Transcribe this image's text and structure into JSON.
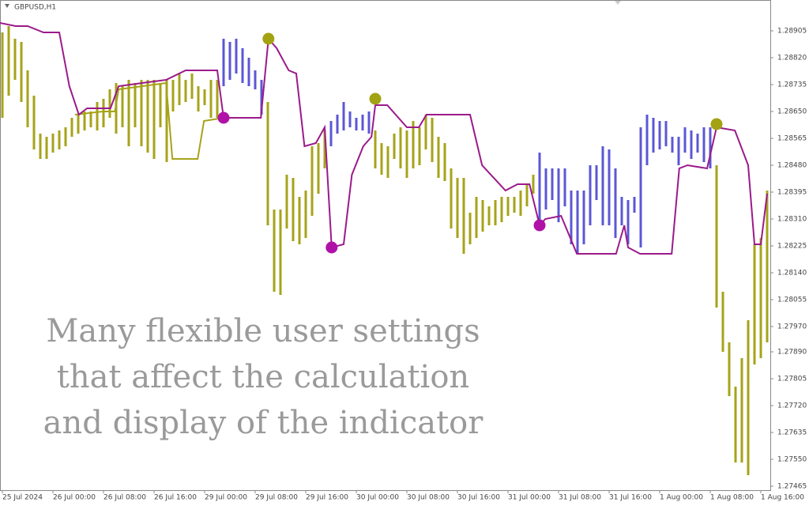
{
  "chart_data": {
    "type": "bars",
    "symbol": "GBPUSD,H1",
    "annotation": [
      "Many flexible user settings",
      "that affect the calculation",
      "and display of the indicator"
    ],
    "xlim": [
      -0.375,
      121.5
    ],
    "ylim": [
      1.274525,
      1.290025
    ],
    "xticks": [
      {
        "value": 0,
        "label": "25 Jul 2024"
      },
      {
        "value": 8,
        "label": "26 Jul 00:00"
      },
      {
        "value": 16,
        "label": "26 Jul 08:00"
      },
      {
        "value": 24,
        "label": "26 Jul 16:00"
      },
      {
        "value": 32,
        "label": "29 Jul 00:00"
      },
      {
        "value": 40,
        "label": "29 Jul 08:00"
      },
      {
        "value": 48,
        "label": "29 Jul 16:00"
      },
      {
        "value": 56,
        "label": "30 Jul 00:00"
      },
      {
        "value": 64,
        "label": "30 Jul 08:00"
      },
      {
        "value": 72,
        "label": "30 Jul 16:00"
      },
      {
        "value": 80,
        "label": "31 Jul 00:00"
      },
      {
        "value": 88,
        "label": "31 Jul 08:00"
      },
      {
        "value": 96,
        "label": "31 Jul 16:00"
      },
      {
        "value": 104,
        "label": "1 Aug 00:00"
      },
      {
        "value": 112,
        "label": "1 Aug 08:00"
      },
      {
        "value": 120,
        "label": "1 Aug 16:00"
      }
    ],
    "yticks": [
      1.28905,
      {
        "value": 1.2882,
        "label": "1.28820"
      },
      1.28735,
      {
        "value": 1.2865,
        "label": "1.28650"
      },
      1.28565,
      {
        "value": 1.2848,
        "label": "1.28480"
      },
      1.28395,
      {
        "value": 1.2831,
        "label": "1.28310"
      },
      1.28225,
      {
        "value": 1.2814,
        "label": "1.28140"
      },
      1.28055,
      {
        "value": 1.2797,
        "label": "1.27970"
      },
      {
        "value": 1.2789,
        "label": "1.27890"
      },
      1.27805,
      {
        "value": 1.2772,
        "label": "1.27720"
      },
      1.27635,
      {
        "value": 1.2755,
        "label": "1.27550"
      },
      1.27465
    ],
    "series": [
      {
        "color": "#a6a31a",
        "x": [
          0,
          1,
          2,
          3,
          4,
          5,
          6,
          7,
          8,
          9,
          10,
          11,
          12,
          13,
          14,
          15,
          16,
          17,
          18,
          19,
          20,
          21,
          22,
          23,
          24,
          25,
          26,
          27,
          28,
          29,
          30,
          31,
          32,
          33,
          34,
          42,
          43,
          44,
          45,
          46,
          47,
          48,
          49,
          50,
          51,
          59,
          60,
          61,
          62,
          63,
          64,
          65,
          66,
          67,
          68,
          69,
          70,
          71,
          72,
          73,
          74,
          75,
          76,
          77,
          78,
          79,
          80,
          81,
          82,
          83,
          84,
          113,
          114,
          115,
          116,
          117,
          118,
          119,
          120,
          121
        ],
        "high": [
          1.289,
          1.2892,
          1.2888,
          1.2887,
          1.2878,
          1.287,
          1.2858,
          1.2857,
          1.2858,
          1.2859,
          1.286,
          1.2863,
          1.2864,
          1.2865,
          1.2865,
          1.2868,
          1.2869,
          1.2872,
          1.2874,
          1.2873,
          1.2875,
          1.2874,
          1.2875,
          1.2875,
          1.2875,
          1.2874,
          1.2875,
          1.2875,
          1.2877,
          1.2875,
          1.2877,
          1.2873,
          1.2872,
          1.2875,
          1.2875,
          1.2868,
          1.2834,
          1.2834,
          1.2845,
          1.2844,
          1.2838,
          1.284,
          1.2854,
          1.2855,
          1.2859,
          1.2859,
          1.2855,
          1.2854,
          1.2858,
          1.286,
          1.2859,
          1.2862,
          1.286,
          1.2864,
          1.2863,
          1.2857,
          1.2855,
          1.2847,
          1.2844,
          1.2844,
          1.2833,
          1.2838,
          1.2837,
          1.2835,
          1.2837,
          1.2838,
          1.2838,
          1.2838,
          1.284,
          1.2842,
          1.2845,
          1.2848,
          1.2808,
          1.2792,
          1.2778,
          1.2787,
          1.2799,
          1.2823,
          1.2825,
          1.284
        ],
        "low": [
          1.2863,
          1.287,
          1.2875,
          1.2868,
          1.286,
          1.2853,
          1.285,
          1.285,
          1.2852,
          1.2853,
          1.2854,
          1.2857,
          1.2858,
          1.2859,
          1.286,
          1.2859,
          1.286,
          1.2863,
          1.2858,
          1.286,
          1.2854,
          1.286,
          1.2854,
          1.2852,
          1.285,
          1.286,
          1.2849,
          1.2865,
          1.2867,
          1.2868,
          1.2869,
          1.2865,
          1.2867,
          1.2863,
          1.2863,
          1.2829,
          1.2808,
          1.2807,
          1.2828,
          1.2824,
          1.2823,
          1.2825,
          1.2832,
          1.2839,
          1.2847,
          1.2847,
          1.2845,
          1.2844,
          1.285,
          1.2847,
          1.2844,
          1.2847,
          1.2848,
          1.2853,
          1.2849,
          1.2844,
          1.2843,
          1.2828,
          1.2825,
          1.282,
          1.2823,
          1.2825,
          1.2827,
          1.2829,
          1.2829,
          1.283,
          1.2832,
          1.2833,
          1.2832,
          1.2835,
          1.2839,
          1.2803,
          1.2789,
          1.2775,
          1.2754,
          1.2754,
          1.275,
          1.2785,
          1.2787,
          1.2792
        ]
      },
      {
        "color": "#5b57d6",
        "x": [
          35,
          36,
          37,
          38,
          39,
          40,
          41,
          52,
          53,
          54,
          55,
          56,
          57,
          58,
          85,
          86,
          87,
          88,
          89,
          90,
          91,
          92,
          93,
          94,
          95,
          96,
          97,
          98,
          99,
          100,
          101,
          102,
          103,
          104,
          105,
          106,
          107,
          108,
          109,
          110,
          111,
          112
        ],
        "high": [
          1.2888,
          1.2887,
          1.2888,
          1.2885,
          1.2882,
          1.2878,
          1.2875,
          1.2862,
          1.2864,
          1.2868,
          1.2865,
          1.2863,
          1.2864,
          1.2865,
          1.2852,
          1.2847,
          1.2847,
          1.2847,
          1.2847,
          1.284,
          1.284,
          1.284,
          1.2848,
          1.2848,
          1.2854,
          1.2853,
          1.2847,
          1.2838,
          1.2837,
          1.2838,
          1.286,
          1.2864,
          1.2863,
          1.2862,
          1.2862,
          1.2857,
          1.2857,
          1.286,
          1.2859,
          1.2858,
          1.286,
          1.286
        ],
        "low": [
          1.2873,
          1.2875,
          1.2877,
          1.2874,
          1.2873,
          1.2872,
          1.2864,
          1.2854,
          1.2858,
          1.2859,
          1.286,
          1.2859,
          1.2859,
          1.2858,
          1.283,
          1.2834,
          1.2837,
          1.283,
          1.2835,
          1.2823,
          1.282,
          1.2823,
          1.2829,
          1.2837,
          1.2829,
          1.2829,
          1.2825,
          1.2829,
          1.2823,
          1.2833,
          1.2822,
          1.2848,
          1.2852,
          1.2853,
          1.2854,
          1.2852,
          1.2848,
          1.2852,
          1.285,
          1.2852,
          1.2849,
          1.2847
        ]
      }
    ],
    "lines": [
      {
        "color": "#a6a31a",
        "x": [
          11.5,
          15.9,
          17.8,
          18.4,
          25.9,
          26.9,
          30.9,
          31.9,
          35
        ],
        "values": [
          1.2864,
          1.2865,
          1.2865,
          1.2872,
          1.2874,
          1.285,
          1.285,
          1.2862,
          1.2863
        ]
      },
      {
        "color": "#9b1a8a",
        "x": [
          -0.4,
          2.1,
          4,
          6.5,
          9,
          10.6,
          12.1,
          13.4,
          17.1,
          18.4,
          22.1,
          25.9,
          29,
          34,
          35,
          40.9,
          42.1,
          43.4,
          45.3,
          46.5,
          47.8,
          49.6,
          51,
          52.1,
          54,
          55.3,
          57.1,
          58.4,
          59,
          60.9,
          64,
          65.9,
          67.1,
          74,
          75.9,
          79.6,
          81.5,
          83.4,
          85,
          85.9,
          88.4,
          90.9,
          97.1,
          98.4,
          99,
          100.9,
          105.9,
          107.1,
          108.4,
          111.5,
          113,
          115.9,
          118,
          119,
          120,
          121
        ],
        "values": [
          1.2893,
          1.2892,
          1.2892,
          1.289,
          1.289,
          1.2873,
          1.2864,
          1.2866,
          1.2866,
          1.2873,
          1.2874,
          1.2875,
          1.2878,
          1.2878,
          1.2863,
          1.2863,
          1.2888,
          1.2885,
          1.2878,
          1.2877,
          1.2854,
          1.2855,
          1.286,
          1.2822,
          1.2823,
          1.2845,
          1.2854,
          1.2857,
          1.2867,
          1.2867,
          1.286,
          1.286,
          1.2864,
          1.2864,
          1.2848,
          1.284,
          1.2842,
          1.2842,
          1.2829,
          1.2831,
          1.2832,
          1.282,
          1.282,
          1.2829,
          1.2822,
          1.282,
          1.282,
          1.2847,
          1.2848,
          1.2847,
          1.286,
          1.2859,
          1.2848,
          1.2823,
          1.2823,
          1.2839
        ]
      }
    ],
    "markers": [
      {
        "color": "#b012a8",
        "x": [
          35,
          52.1,
          85
        ],
        "values": [
          1.2863,
          1.2822,
          1.2829
        ]
      },
      {
        "color": "#a3a213",
        "x": [
          42.1,
          59,
          113
        ],
        "values": [
          1.2888,
          1.2869,
          1.2861
        ]
      }
    ]
  }
}
